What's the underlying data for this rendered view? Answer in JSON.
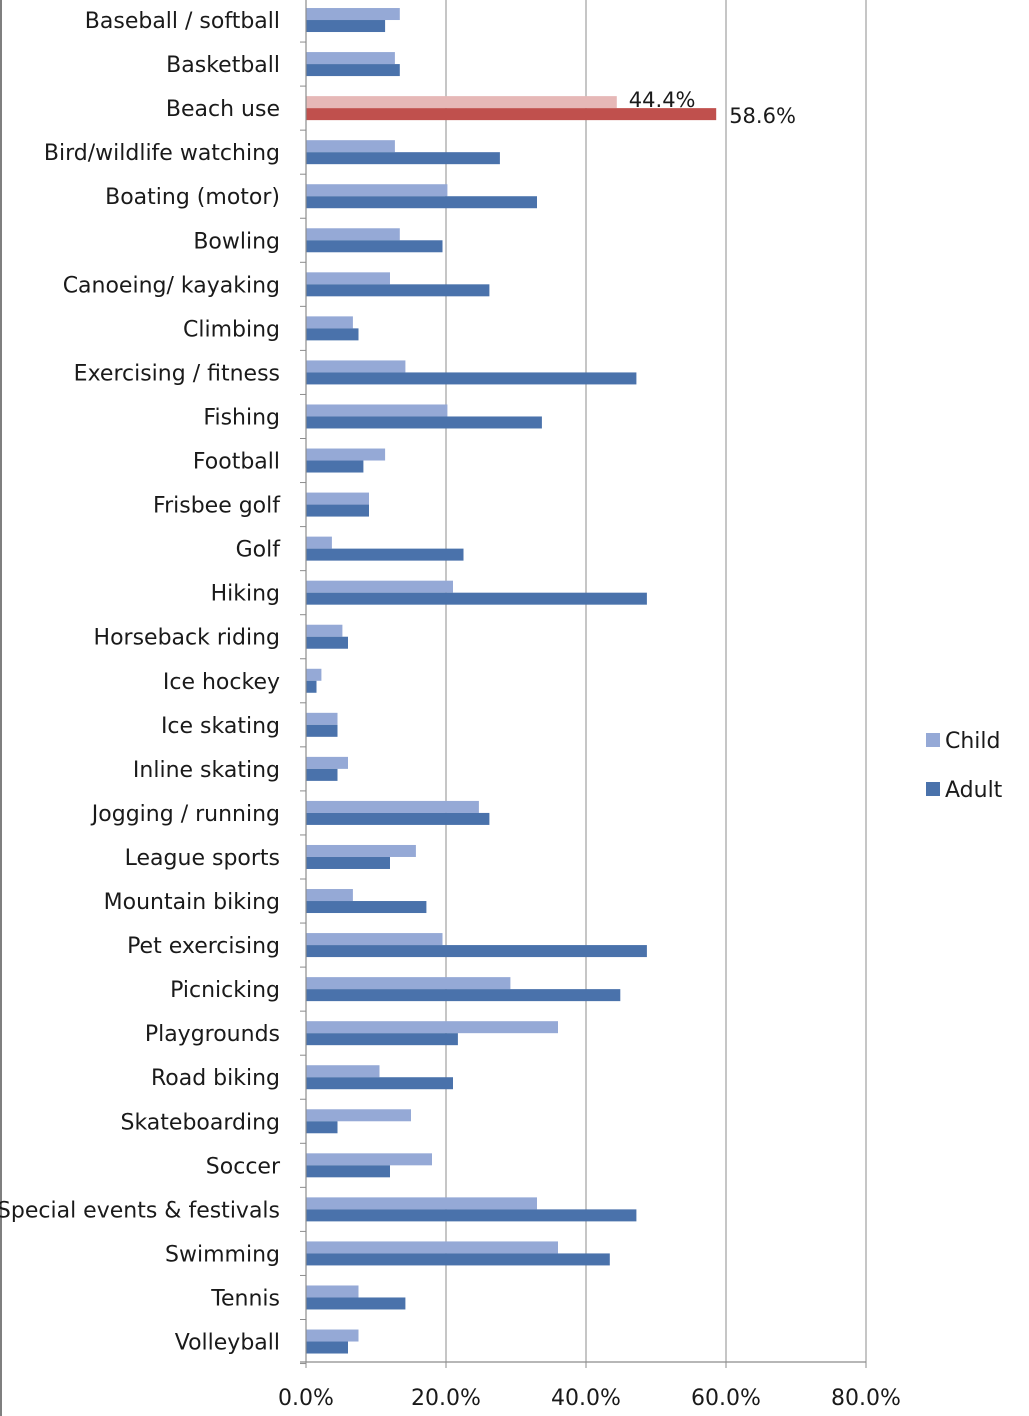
{
  "chart_data": {
    "type": "bar",
    "orientation": "horizontal",
    "categories": [
      "Baseball / softball",
      "Basketball",
      "Beach use",
      "Bird/wildlife watching",
      "Boating (motor)",
      "Bowling",
      "Canoeing/ kayaking",
      "Climbing",
      "Exercising / fitness",
      "Fishing",
      "Football",
      "Frisbee golf",
      "Golf",
      "Hiking",
      "Horseback riding",
      "Ice hockey",
      "Ice skating",
      "Inline skating",
      "Jogging / running",
      "League sports",
      "Mountain biking",
      "Pet exercising",
      "Picnicking",
      "Playgrounds",
      "Road biking",
      "Skateboarding",
      "Soccer",
      "Special events & festivals",
      "Swimming",
      "Tennis",
      "Volleyball"
    ],
    "series": [
      {
        "name": "Child",
        "color": "#95a9d6",
        "values": [
          13.4,
          12.7,
          44.4,
          12.7,
          20.2,
          13.4,
          12.0,
          6.7,
          14.2,
          20.2,
          11.3,
          9.0,
          3.7,
          21.0,
          5.2,
          2.2,
          4.5,
          6.0,
          24.7,
          15.7,
          6.7,
          19.5,
          29.2,
          36.0,
          10.5,
          15.0,
          18.0,
          33.0,
          36.0,
          7.5,
          7.5
        ]
      },
      {
        "name": "Adult",
        "color": "#4a72ab",
        "values": [
          11.3,
          13.4,
          58.6,
          27.7,
          33.0,
          19.5,
          26.2,
          7.5,
          47.2,
          33.7,
          8.2,
          9.0,
          22.5,
          48.7,
          6.0,
          1.5,
          4.5,
          4.5,
          26.2,
          12.0,
          17.2,
          48.7,
          44.9,
          21.7,
          21.0,
          4.5,
          12.0,
          47.2,
          43.4,
          14.2,
          6.0
        ]
      }
    ],
    "highlight": {
      "category": "Beach use",
      "child_color": "#e6b8b7",
      "adult_color": "#c0504d",
      "data_labels": {
        "child": "44.4%",
        "adult": "58.6%"
      }
    },
    "x_ticks": [
      "0.0%",
      "20.0%",
      "40.0%",
      "60.0%",
      "80.0%"
    ],
    "xlim": [
      0,
      80
    ],
    "grid": true,
    "legend_position": "right",
    "title": "",
    "xlabel": "",
    "ylabel": ""
  }
}
